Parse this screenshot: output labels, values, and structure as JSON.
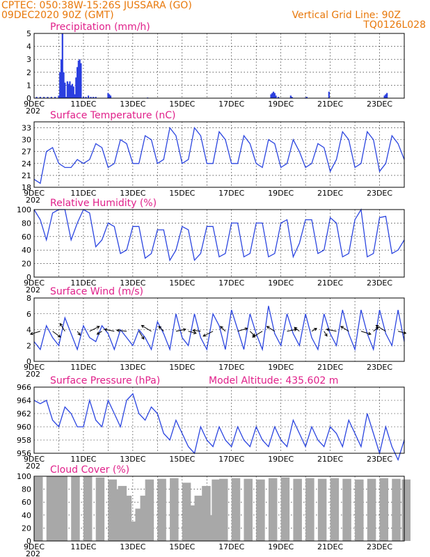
{
  "header": {
    "line1_left": "CPTEC:   050:38W-15:26S   JUSSARA (GO)",
    "line2_left": "09DEC2020 90Z (GMT)",
    "line1_right": "Vertical Grid Line: 90Z",
    "line2_right": "TQ0126L028"
  },
  "x_labels": [
    "9DEC",
    "11DEC",
    "13DEC",
    "15DEC",
    "17DEC",
    "19DEC",
    "21DEC",
    "23DEC"
  ],
  "x_under_label": "202",
  "colors": {
    "header": "#e8780a",
    "title": "#e0208a",
    "series": "#2b45e0",
    "cloud": "#a8a8a8"
  },
  "chart_data": [
    {
      "type": "bar",
      "title": "Precipitation (mm/h)",
      "x_unit": "days since 9DEC",
      "ylim": [
        0,
        5
      ],
      "yticks": [
        0,
        1,
        2,
        3,
        4,
        5
      ],
      "x": [
        0.1,
        0.25,
        0.4,
        0.55,
        0.7,
        0.85,
        1.0,
        1.05,
        1.1,
        1.15,
        1.2,
        1.25,
        1.3,
        1.35,
        1.4,
        1.45,
        1.5,
        1.55,
        1.6,
        1.65,
        1.7,
        1.75,
        1.8,
        1.85,
        1.9,
        2.0,
        2.1,
        2.2,
        2.3,
        2.4,
        2.5,
        3.0,
        3.05,
        3.1,
        4.6,
        9.6,
        9.65,
        9.7,
        9.75,
        9.8,
        9.9,
        10.4,
        10.45,
        11.0,
        11.05,
        11.95,
        14.2,
        14.25,
        14.3
      ],
      "values": [
        0.1,
        0.1,
        0.1,
        0.1,
        0.1,
        0.1,
        0.2,
        2.0,
        3.0,
        5.0,
        2.0,
        1.2,
        0.1,
        1.3,
        1.1,
        1.3,
        1.0,
        1.1,
        0.9,
        0.3,
        1.6,
        2.4,
        2.9,
        3.0,
        2.7,
        0.1,
        0.1,
        0.2,
        0.1,
        0.1,
        0.1,
        0.4,
        0.3,
        0.2,
        0.05,
        0.3,
        0.4,
        0.5,
        0.4,
        0.2,
        0.1,
        0.2,
        0.1,
        0.05,
        0.1,
        0.5,
        0.2,
        0.3,
        0.4
      ]
    },
    {
      "type": "line",
      "title": "Surface Temperature (nC)",
      "x_unit": "days since 9DEC",
      "ylim": [
        18,
        34.5
      ],
      "yticks": [
        18,
        21,
        24,
        27,
        30,
        33
      ],
      "x": [
        0,
        0.25,
        0.5,
        0.75,
        1.0,
        1.25,
        1.5,
        1.75,
        2.0,
        2.25,
        2.5,
        2.75,
        3.0,
        3.25,
        3.5,
        3.75,
        4.0,
        4.25,
        4.5,
        4.75,
        5.0,
        5.25,
        5.5,
        5.75,
        6.0,
        6.25,
        6.5,
        6.75,
        7.0,
        7.25,
        7.5,
        7.75,
        8.0,
        8.25,
        8.5,
        8.75,
        9.0,
        9.25,
        9.5,
        9.75,
        10.0,
        10.25,
        10.5,
        10.75,
        11.0,
        11.25,
        11.5,
        11.75,
        12.0,
        12.25,
        12.5,
        12.75,
        13.0,
        13.25,
        13.5,
        13.75,
        14.0,
        14.25,
        14.5,
        14.75,
        15.0
      ],
      "values": [
        20,
        19,
        27,
        28,
        24,
        23,
        23,
        25,
        24,
        25,
        29,
        28,
        23,
        24,
        30,
        29,
        24,
        24,
        31,
        30,
        24,
        25,
        33,
        31,
        24,
        25,
        33,
        31,
        24,
        24,
        32,
        30,
        24,
        24,
        31,
        29,
        24,
        23,
        30,
        29,
        23,
        24,
        30,
        27,
        23,
        24,
        29,
        28,
        22,
        25,
        32,
        30,
        23,
        24,
        32,
        30,
        22,
        24,
        31,
        29,
        25
      ],
      "series_color": "#2b45e0"
    },
    {
      "type": "line",
      "title": "Relative Humidity (%)",
      "x_unit": "days since 9DEC",
      "ylim": [
        0,
        100
      ],
      "yticks": [
        0,
        20,
        40,
        60,
        80,
        100
      ],
      "x": [
        0,
        0.25,
        0.5,
        0.75,
        1.0,
        1.25,
        1.5,
        1.75,
        2.0,
        2.25,
        2.5,
        2.75,
        3.0,
        3.25,
        3.5,
        3.75,
        4.0,
        4.25,
        4.5,
        4.75,
        5.0,
        5.25,
        5.5,
        5.75,
        6.0,
        6.25,
        6.5,
        6.75,
        7.0,
        7.25,
        7.5,
        7.75,
        8.0,
        8.25,
        8.5,
        8.75,
        9.0,
        9.25,
        9.5,
        9.75,
        10.0,
        10.25,
        10.5,
        10.75,
        11.0,
        11.25,
        11.5,
        11.75,
        12.0,
        12.25,
        12.5,
        12.75,
        13.0,
        13.25,
        13.5,
        13.75,
        14.0,
        14.25,
        14.5,
        14.75,
        15.0
      ],
      "values": [
        100,
        85,
        55,
        95,
        100,
        100,
        55,
        80,
        100,
        95,
        45,
        55,
        80,
        75,
        35,
        40,
        75,
        75,
        28,
        35,
        70,
        70,
        25,
        40,
        75,
        70,
        25,
        35,
        75,
        75,
        30,
        35,
        80,
        80,
        30,
        35,
        80,
        80,
        30,
        35,
        80,
        85,
        30,
        50,
        85,
        85,
        35,
        40,
        88,
        80,
        30,
        35,
        85,
        100,
        30,
        35,
        88,
        90,
        35,
        40,
        55
      ],
      "series_color": "#2b45e0"
    },
    {
      "type": "line",
      "title": "Surface Wind (m/s)",
      "x_unit": "days since 9DEC",
      "ylim": [
        0,
        8
      ],
      "yticks": [
        0,
        2,
        4,
        6,
        8
      ],
      "x": [
        0,
        0.25,
        0.5,
        0.75,
        1.0,
        1.25,
        1.5,
        1.75,
        2.0,
        2.25,
        2.5,
        2.75,
        3.0,
        3.25,
        3.5,
        3.75,
        4.0,
        4.25,
        4.5,
        4.75,
        5.0,
        5.25,
        5.5,
        5.75,
        6.0,
        6.25,
        6.5,
        6.75,
        7.0,
        7.25,
        7.5,
        7.75,
        8.0,
        8.25,
        8.5,
        8.75,
        9.0,
        9.25,
        9.5,
        9.75,
        10.0,
        10.25,
        10.5,
        10.75,
        11.0,
        11.25,
        11.5,
        11.75,
        12.0,
        12.25,
        12.5,
        12.75,
        13.0,
        13.25,
        13.5,
        13.75,
        14.0,
        14.25,
        14.5,
        14.75,
        15.0
      ],
      "values": [
        2.5,
        1.5,
        4.5,
        3.0,
        2.0,
        5.5,
        3.5,
        1.5,
        4.5,
        3.0,
        2.5,
        4.5,
        3.5,
        1.5,
        4.0,
        3.0,
        2.0,
        4.0,
        3.0,
        1.5,
        5.0,
        3.5,
        1.5,
        6.0,
        3.0,
        2.0,
        6.0,
        3.0,
        1.5,
        6.0,
        4.5,
        1.5,
        6.5,
        4.0,
        1.5,
        6.0,
        3.5,
        1.5,
        7.0,
        3.5,
        2.0,
        6.0,
        3.5,
        2.0,
        6.0,
        3.0,
        1.5,
        6.0,
        3.5,
        2.0,
        6.5,
        3.5,
        1.5,
        6.5,
        3.5,
        1.5,
        6.5,
        3.5,
        2.0,
        6.5,
        2.5
      ],
      "series_color": "#2b45e0",
      "vectors_u": [
        -1,
        0.8,
        -0.5,
        0.3,
        1,
        -0.5,
        -1,
        -1,
        0.5,
        -1,
        -0.5,
        1,
        0.8,
        -0.8,
        -1,
        -0.5,
        1,
        0.5,
        -1,
        -0.8,
        1,
        -0.5,
        0.5,
        0.3,
        -1,
        -0.8,
        1,
        0.5,
        -1,
        0.8
      ],
      "vectors_v": [
        -0.3,
        -0.6,
        0.8,
        -0.4,
        0.5,
        -0.3,
        0.2,
        0.1,
        -0.8,
        0.6,
        0.5,
        0.2,
        -0.2,
        0.1,
        -0.5,
        0.5,
        0.3,
        -0.5,
        -0.6,
        0.5,
        0.2,
        0.4,
        0.3,
        -0.5,
        0.2,
        0.5,
        -0.3,
        0.4,
        0.6,
        -0.2
      ]
    },
    {
      "type": "line",
      "title": "Surface Pressure (hPa)",
      "annotation": "Model Altitude: 435.602  m",
      "x_unit": "days since 9DEC",
      "ylim": [
        956,
        966
      ],
      "yticks": [
        956,
        958,
        960,
        962,
        964,
        966
      ],
      "x": [
        0,
        0.25,
        0.5,
        0.75,
        1.0,
        1.25,
        1.5,
        1.75,
        2.0,
        2.25,
        2.5,
        2.75,
        3.0,
        3.25,
        3.5,
        3.75,
        4.0,
        4.25,
        4.5,
        4.75,
        5.0,
        5.25,
        5.5,
        5.75,
        6.0,
        6.25,
        6.5,
        6.75,
        7.0,
        7.25,
        7.5,
        7.75,
        8.0,
        8.25,
        8.5,
        8.75,
        9.0,
        9.25,
        9.5,
        9.75,
        10.0,
        10.25,
        10.5,
        10.75,
        11.0,
        11.25,
        11.5,
        11.75,
        12.0,
        12.25,
        12.5,
        12.75,
        13.0,
        13.25,
        13.5,
        13.75,
        14.0,
        14.25,
        14.5,
        14.75,
        15.0
      ],
      "values": [
        964,
        963.5,
        964,
        961,
        960,
        963,
        962,
        960,
        960,
        964,
        961,
        960,
        964,
        962,
        960,
        964,
        965,
        962,
        961,
        963,
        962,
        959,
        958,
        961,
        959,
        957,
        956,
        960,
        958,
        957,
        960,
        958,
        957,
        960,
        958,
        957,
        960,
        958,
        957,
        960,
        958,
        957,
        961,
        959,
        957,
        960,
        958,
        957,
        960,
        959,
        957,
        961,
        959,
        957,
        962,
        959,
        956,
        960,
        957,
        955,
        958
      ],
      "series_color": "#2b45e0"
    },
    {
      "type": "bar",
      "title": "Cloud Cover (%)",
      "x_unit": "days since 9DEC",
      "ylim": [
        0,
        100
      ],
      "yticks": [
        0,
        20,
        40,
        60,
        80,
        100
      ],
      "x": [
        0,
        0.5,
        0.6,
        0.65,
        1.0,
        1.5,
        2.0,
        2.5,
        3.0,
        3.2,
        3.4,
        3.5,
        3.6,
        3.8,
        4.0,
        4.1,
        4.2,
        4.3,
        4.5,
        5.0,
        5.5,
        6.0,
        6.3,
        6.5,
        6.8,
        7.0,
        7.2,
        7.5,
        8.0,
        8.5,
        9.0,
        9.5,
        10.0,
        10.5,
        11.0,
        11.5,
        12.0,
        12.5,
        13.0,
        13.5,
        14.0,
        14.5,
        14.9
      ],
      "values": [
        99,
        100,
        2,
        100,
        100,
        100,
        100,
        98,
        95,
        80,
        85,
        65,
        70,
        30,
        10,
        50,
        40,
        70,
        95,
        96,
        97,
        90,
        55,
        70,
        85,
        40,
        95,
        96,
        97,
        96,
        95,
        97,
        98,
        96,
        97,
        96,
        97,
        96,
        95,
        96,
        97,
        96,
        95
      ],
      "series_color": "#a8a8a8"
    }
  ]
}
